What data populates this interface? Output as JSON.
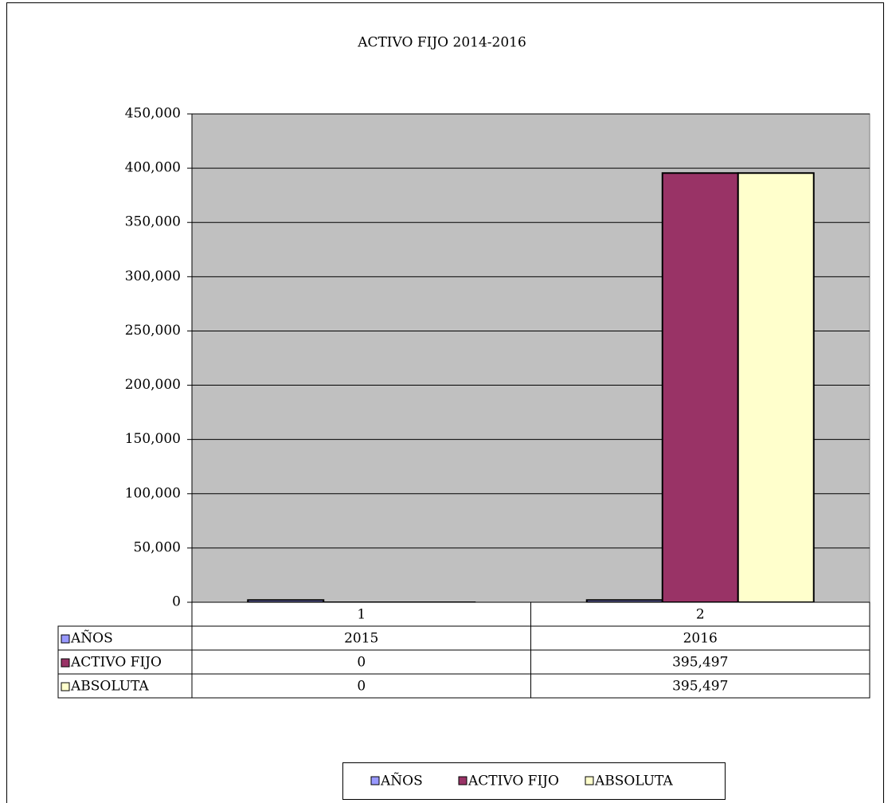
{
  "chart_data": {
    "type": "bar",
    "title": "ACTIVO FIJO 2014-2016",
    "categories": [
      "1",
      "2"
    ],
    "series": [
      {
        "name": "AÑOS",
        "color": "#9999ff",
        "values": [
          2015,
          2016
        ]
      },
      {
        "name": "ACTIVO FIJO",
        "color": "#993366",
        "values": [
          0,
          395497
        ],
        "value_labels": [
          "0",
          "395,497"
        ]
      },
      {
        "name": "ABSOLUTA",
        "color": "#ffffcc",
        "values": [
          0,
          395497
        ],
        "value_labels": [
          "0",
          "395,497"
        ]
      }
    ],
    "ylim": [
      0,
      450000
    ],
    "yticks": [
      0,
      {
        "value": 50000,
        "label": "50,000"
      },
      {
        "value": 100000,
        "label": "100,000"
      },
      {
        "value": 150000,
        "label": "150,000"
      },
      {
        "value": 200000,
        "label": "200,000"
      },
      {
        "value": 250000,
        "label": "250,000"
      },
      {
        "value": 300000,
        "label": "300,000"
      },
      {
        "value": 350000,
        "label": "350,000"
      },
      {
        "value": 400000,
        "label": "400,000"
      },
      {
        "value": 450000,
        "label": "450,000"
      }
    ],
    "grid": true,
    "legend": "bottom"
  }
}
